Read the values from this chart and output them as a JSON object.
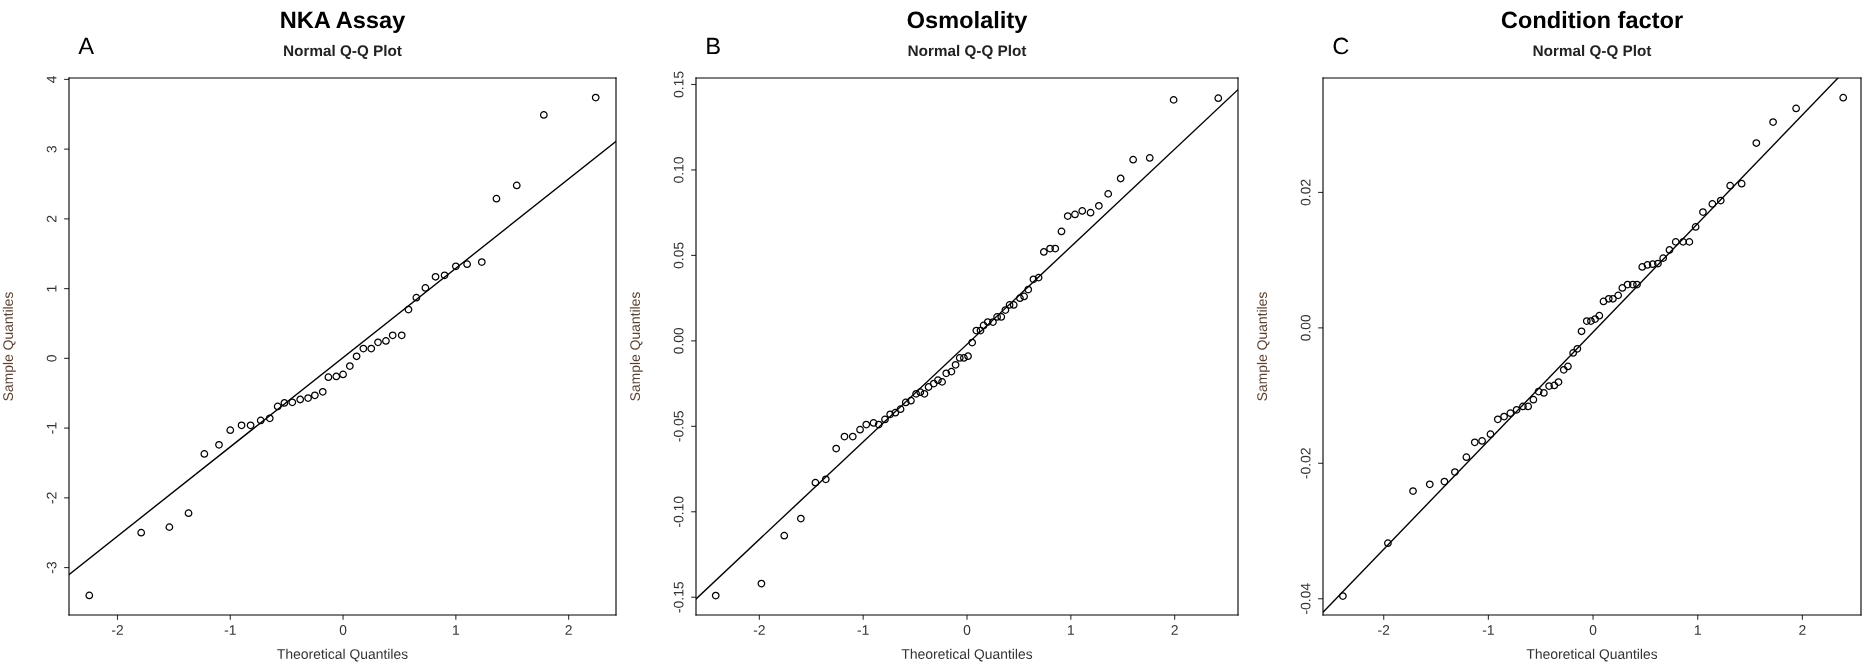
{
  "chart_data": [
    {
      "type": "scatter",
      "title": "NKA Assay",
      "subtitle": "Normal Q-Q Plot",
      "xlabel": "Theoretical Quantiles",
      "ylabel": "Sample Quantiles",
      "annotations": [
        "A"
      ],
      "grid": false,
      "xlim": [
        -2.43,
        2.42
      ],
      "ylim": [
        -3.68,
        4.02
      ],
      "xticks": [
        -2,
        -1,
        0,
        1,
        2
      ],
      "yticks": [
        -3,
        -2,
        -1,
        0,
        1,
        2,
        3,
        4
      ],
      "series": [
        {
          "marker": "circle",
          "color": "#000000",
          "x": [
            -2.25,
            -1.79,
            -1.54,
            -1.37,
            -1.23,
            -1.1,
            -1.0,
            -0.9,
            -0.82,
            -0.73,
            -0.65,
            -0.58,
            -0.52,
            -0.45,
            -0.38,
            -0.31,
            -0.25,
            -0.18,
            -0.13,
            -0.06,
            0.0,
            0.06,
            0.12,
            0.18,
            0.25,
            0.31,
            0.38,
            0.44,
            0.52,
            0.58,
            0.65,
            0.73,
            0.82,
            0.9,
            1.0,
            1.1,
            1.23,
            1.36,
            1.54,
            1.78,
            2.24
          ],
          "values": [
            -3.4,
            -2.5,
            -2.42,
            -2.22,
            -1.37,
            -1.24,
            -1.03,
            -0.96,
            -0.96,
            -0.89,
            -0.86,
            -0.69,
            -0.64,
            -0.63,
            -0.59,
            -0.57,
            -0.53,
            -0.48,
            -0.27,
            -0.26,
            -0.23,
            -0.11,
            0.03,
            0.14,
            0.14,
            0.23,
            0.25,
            0.33,
            0.33,
            0.7,
            0.87,
            1.01,
            1.17,
            1.19,
            1.32,
            1.35,
            1.38,
            2.29,
            2.48,
            3.49,
            3.74
          ]
        },
        {
          "type": "line",
          "color": "#000000",
          "x": [
            -2.43,
            2.42
          ],
          "values": [
            -3.1,
            3.11
          ]
        }
      ]
    },
    {
      "type": "scatter",
      "title": "Osmolality",
      "subtitle": "Normal Q-Q Plot",
      "xlabel": "Theoretical Quantiles",
      "ylabel": "Sample Quantiles",
      "annotations": [
        "B"
      ],
      "grid": false,
      "xlim": [
        -2.61,
        2.61
      ],
      "ylim": [
        -0.1604,
        0.1538
      ],
      "xticks": [
        -2,
        -1,
        0,
        1,
        2
      ],
      "yticks": [
        {
          "value": -0.15,
          "label": "-0.15"
        },
        {
          "value": -0.1,
          "label": "-0.10"
        },
        {
          "value": -0.05,
          "label": "-0.05"
        },
        {
          "value": 0,
          "label": "0.00"
        },
        {
          "value": 0.05,
          "label": "0.05"
        },
        {
          "value": 0.1,
          "label": "0.10"
        },
        {
          "value": 0.15,
          "label": "0.15"
        }
      ],
      "series": [
        {
          "marker": "circle",
          "color": "#000000",
          "x": [
            -2.42,
            -1.98,
            -1.76,
            -1.6,
            -1.46,
            -1.36,
            -1.26,
            -1.18,
            -1.1,
            -1.03,
            -0.97,
            -0.9,
            -0.85,
            -0.79,
            -0.74,
            -0.69,
            -0.64,
            -0.59,
            -0.54,
            -0.49,
            -0.45,
            -0.41,
            -0.37,
            -0.32,
            -0.28,
            -0.24,
            -0.2,
            -0.15,
            -0.11,
            -0.07,
            -0.03,
            0.01,
            0.05,
            0.09,
            0.13,
            0.16,
            0.2,
            0.25,
            0.29,
            0.33,
            0.37,
            0.41,
            0.45,
            0.51,
            0.55,
            0.59,
            0.64,
            0.69,
            0.74,
            0.8,
            0.85,
            0.91,
            0.97,
            1.04,
            1.11,
            1.19,
            1.27,
            1.36,
            1.48,
            1.6,
            1.76,
            1.99,
            2.42
          ],
          "values": [
            -0.149,
            -0.142,
            -0.114,
            -0.104,
            -0.083,
            -0.081,
            -0.063,
            -0.056,
            -0.056,
            -0.052,
            -0.049,
            -0.048,
            -0.049,
            -0.046,
            -0.043,
            -0.042,
            -0.04,
            -0.036,
            -0.035,
            -0.031,
            -0.03,
            -0.031,
            -0.027,
            -0.025,
            -0.023,
            -0.024,
            -0.019,
            -0.018,
            -0.014,
            -0.01,
            -0.01,
            -0.009,
            -0.001,
            0.006,
            0.006,
            0.009,
            0.011,
            0.011,
            0.014,
            0.014,
            0.018,
            0.021,
            0.021,
            0.025,
            0.026,
            0.03,
            0.036,
            0.037,
            0.052,
            0.054,
            0.054,
            0.064,
            0.073,
            0.074,
            0.076,
            0.075,
            0.079,
            0.086,
            0.095,
            0.106,
            0.107,
            0.141,
            0.142
          ]
        },
        {
          "type": "line",
          "color": "#000000",
          "x": [
            -2.61,
            2.61
          ],
          "values": [
            -0.151,
            0.147
          ]
        }
      ]
    },
    {
      "type": "scatter",
      "title": "Condition factor",
      "subtitle": "Normal Q-Q Plot",
      "xlabel": "Theoretical Quantiles",
      "ylabel": "Sample Quantiles",
      "annotations": [
        "C"
      ],
      "grid": false,
      "xlim": [
        -2.58,
        2.56
      ],
      "ylim": [
        -0.0424,
        0.0369
      ],
      "xticks": [
        -2,
        -1,
        0,
        1,
        2
      ],
      "yticks": [
        {
          "value": -0.04,
          "label": "-0.04"
        },
        {
          "value": -0.02,
          "label": "-0.02"
        },
        {
          "value": 0,
          "label": "0.00"
        },
        {
          "value": 0.02,
          "label": "0.02"
        }
      ],
      "series": [
        {
          "marker": "circle",
          "color": "#000000",
          "x": [
            -2.39,
            -1.96,
            -1.72,
            -1.56,
            -1.42,
            -1.32,
            -1.21,
            -1.13,
            -1.06,
            -0.98,
            -0.91,
            -0.85,
            -0.79,
            -0.73,
            -0.67,
            -0.62,
            -0.57,
            -0.52,
            -0.47,
            -0.42,
            -0.37,
            -0.33,
            -0.28,
            -0.24,
            -0.19,
            -0.15,
            -0.11,
            -0.06,
            -0.02,
            0.02,
            0.06,
            0.1,
            0.15,
            0.19,
            0.24,
            0.28,
            0.33,
            0.38,
            0.42,
            0.47,
            0.52,
            0.57,
            0.62,
            0.67,
            0.73,
            0.79,
            0.86,
            0.92,
            0.98,
            1.05,
            1.14,
            1.22,
            1.31,
            1.42,
            1.56,
            1.72,
            1.94,
            2.39
          ],
          "values": [
            -0.0396,
            -0.0318,
            -0.0241,
            -0.0231,
            -0.0227,
            -0.0213,
            -0.0191,
            -0.0169,
            -0.0167,
            -0.0157,
            -0.0135,
            -0.0131,
            -0.0126,
            -0.0121,
            -0.0116,
            -0.0116,
            -0.0106,
            -0.0094,
            -0.0096,
            -0.0086,
            -0.0085,
            -0.008,
            -0.0062,
            -0.0057,
            -0.0037,
            -0.0031,
            -0.0005,
            0.001,
            0.001,
            0.0013,
            0.0018,
            0.0039,
            0.0043,
            0.0043,
            0.0048,
            0.0059,
            0.0064,
            0.0064,
            0.0064,
            0.009,
            0.0093,
            0.0094,
            0.0095,
            0.0103,
            0.0115,
            0.0127,
            0.0127,
            0.0127,
            0.0149,
            0.0171,
            0.0183,
            0.0188,
            0.021,
            0.0213,
            0.0273,
            0.0304,
            0.0324,
            0.034
          ]
        },
        {
          "type": "line",
          "color": "#000000",
          "x": [
            -2.58,
            2.34
          ],
          "values": [
            -0.042,
            0.0369
          ]
        }
      ]
    }
  ]
}
